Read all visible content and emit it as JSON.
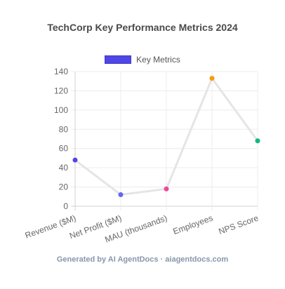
{
  "chart_data": {
    "type": "line",
    "title": "TechCorp Key Performance Metrics 2024",
    "categories": [
      "Revenue ($M)",
      "Net Profit ($M)",
      "MAU (thousands)",
      "Employees",
      "NPS Score"
    ],
    "series": [
      {
        "name": "Key Metrics",
        "values": [
          48,
          12,
          18,
          133,
          68
        ],
        "point_colors": [
          "#4f46e5",
          "#6366f1",
          "#ec4899",
          "#f59e0b",
          "#10b981"
        ],
        "line_color": "#e5e5e5"
      }
    ],
    "yticks": [
      0,
      20,
      40,
      60,
      80,
      100,
      120,
      140
    ],
    "ylim": [
      0,
      140
    ],
    "grid": true,
    "legend": "top-center",
    "legend_color": "#4f46e5"
  },
  "footer": "Generated by AI AgentDocs · aiagentdocs.com"
}
